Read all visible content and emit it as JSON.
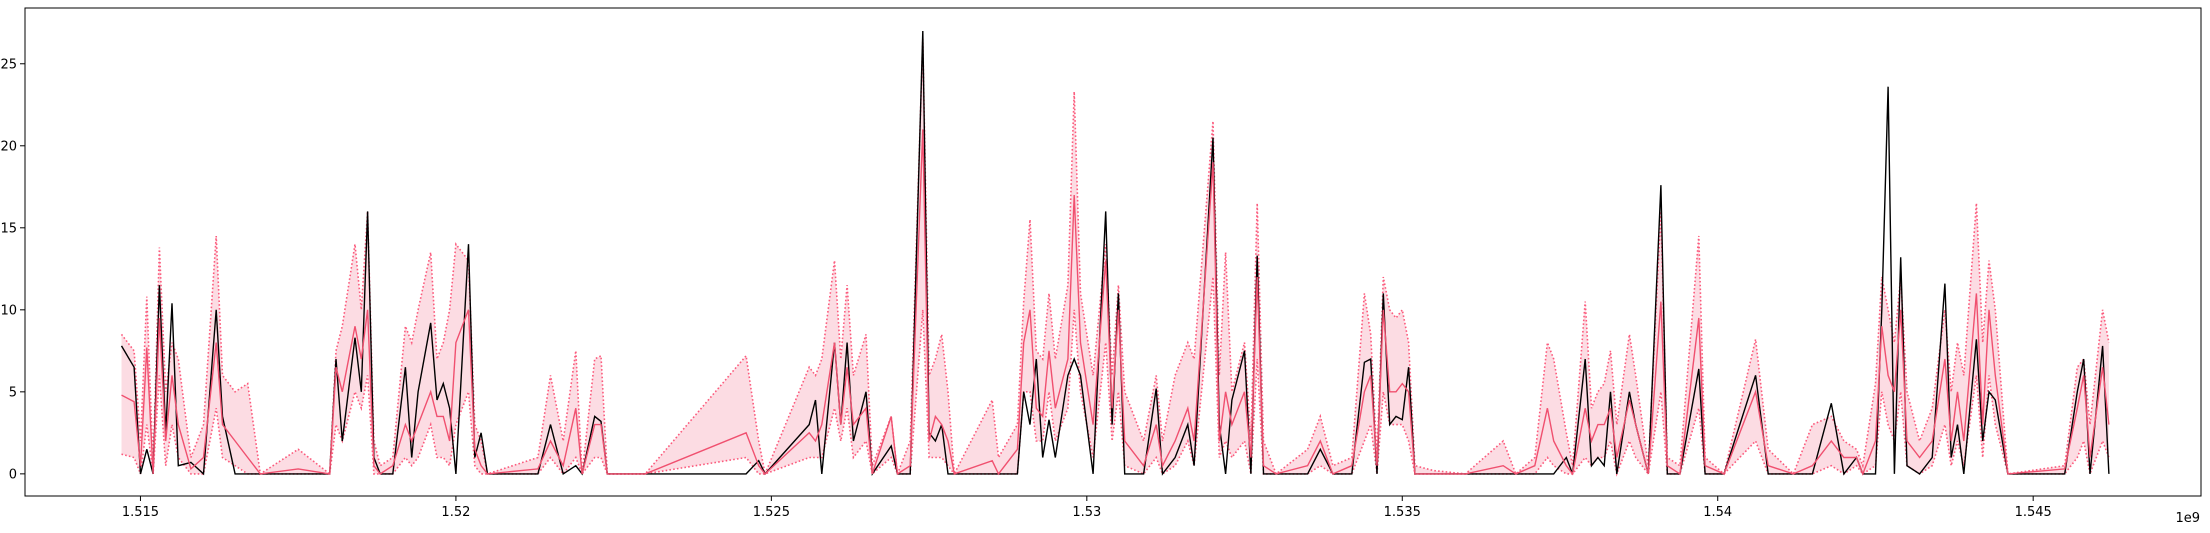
{
  "chart_data": {
    "type": "line",
    "x_offset_label": "1e9",
    "x": [
      1.5147,
      1.5149,
      1.515,
      1.5151,
      1.5152,
      1.5153,
      1.5154,
      1.5155,
      1.5156,
      1.5158,
      1.516,
      1.5162,
      1.5163,
      1.5165,
      1.5167,
      1.5169,
      1.5175,
      1.518,
      1.5181,
      1.5182,
      1.5184,
      1.5185,
      1.5186,
      1.5187,
      1.5188,
      1.519,
      1.5192,
      1.5193,
      1.5194,
      1.5196,
      1.5197,
      1.5198,
      1.5199,
      1.52,
      1.5202,
      1.5203,
      1.5204,
      1.5205,
      1.5213,
      1.5215,
      1.5217,
      1.5219,
      1.522,
      1.5222,
      1.5223,
      1.5224,
      1.523,
      1.5246,
      1.5248,
      1.5249,
      1.5256,
      1.5257,
      1.5258,
      1.526,
      1.5261,
      1.5262,
      1.5263,
      1.5265,
      1.5266,
      1.5269,
      1.527,
      1.5272,
      1.5274,
      1.5275,
      1.5276,
      1.5277,
      1.5278,
      1.5279,
      1.5285,
      1.5286,
      1.5289,
      1.529,
      1.5291,
      1.5292,
      1.5293,
      1.5294,
      1.5295,
      1.5297,
      1.5298,
      1.5299,
      1.5301,
      1.5303,
      1.5304,
      1.5305,
      1.5306,
      1.5309,
      1.5311,
      1.5312,
      1.5314,
      1.5316,
      1.5317,
      1.532,
      1.5321,
      1.5322,
      1.5323,
      1.5325,
      1.5326,
      1.5327,
      1.5328,
      1.533,
      1.5335,
      1.5337,
      1.5339,
      1.5342,
      1.5344,
      1.5345,
      1.5346,
      1.5347,
      1.5348,
      1.5349,
      1.535,
      1.5351,
      1.5352,
      1.5355,
      1.536,
      1.5366,
      1.5368,
      1.5371,
      1.5373,
      1.5374,
      1.5376,
      1.5377,
      1.5379,
      1.538,
      1.5381,
      1.5382,
      1.5383,
      1.5384,
      1.5386,
      1.5387,
      1.5389,
      1.5391,
      1.5392,
      1.5394,
      1.5397,
      1.5398,
      1.5401,
      1.5406,
      1.5408,
      1.5412,
      1.5415,
      1.5418,
      1.542,
      1.5422,
      1.5423,
      1.5425,
      1.5426,
      1.5427,
      1.5428,
      1.5429,
      1.543,
      1.5432,
      1.5434,
      1.5436,
      1.5437,
      1.5438,
      1.5439,
      1.5441,
      1.5442,
      1.5443,
      1.5444,
      1.5446,
      1.5455,
      1.5457,
      1.5458,
      1.5459,
      1.5461,
      1.5462
    ],
    "series": [
      {
        "color": "#fb5a7c",
        "linestyle": "dotted",
        "values": [
          1.2,
          1,
          0,
          3,
          0,
          6,
          0.5,
          3,
          1,
          0,
          0,
          4,
          1,
          0.5,
          0,
          0,
          0,
          0,
          3,
          2,
          5,
          4,
          6,
          0,
          0,
          0,
          1,
          0.5,
          1,
          3,
          1,
          1,
          0.5,
          3,
          5,
          0.5,
          0,
          0,
          0,
          1,
          0,
          1,
          0,
          1,
          1,
          0,
          0,
          1,
          0,
          0,
          1,
          1,
          1,
          4,
          2,
          4,
          1,
          2,
          0,
          1,
          0,
          0,
          10,
          1,
          1,
          1,
          0.5,
          0,
          0,
          0,
          0,
          5,
          5,
          2,
          2,
          5,
          2,
          4,
          10,
          5,
          1,
          8,
          2,
          5,
          0.5,
          0,
          1,
          0,
          0.5,
          2,
          0.5,
          12,
          1,
          2,
          1,
          2,
          0,
          7,
          0,
          0,
          0,
          0.5,
          0,
          0,
          2,
          3,
          0,
          5,
          3,
          3,
          3,
          2,
          0,
          0,
          0,
          0,
          0,
          0,
          1,
          0.5,
          0,
          0,
          1,
          0.5,
          1,
          1,
          2,
          0,
          2,
          1,
          0,
          5,
          0,
          0,
          4,
          0,
          0,
          2,
          0,
          0,
          0,
          0.5,
          0,
          0.5,
          0,
          0.5,
          5,
          3,
          2,
          5,
          0.5,
          0,
          0.5,
          3,
          0.5,
          2,
          0.5,
          6,
          1,
          6,
          3,
          0,
          0,
          1,
          2,
          0,
          2,
          1
        ]
      },
      {
        "color": "#fb5a7c",
        "linestyle": "dotted",
        "values": [
          8.5,
          7.5,
          2,
          10.8,
          0.5,
          13.8,
          5,
          8,
          7,
          1,
          3,
          14.5,
          6,
          5,
          5.5,
          0,
          1.5,
          0,
          7.5,
          9,
          14,
          10,
          16,
          2,
          0.5,
          1,
          9,
          8,
          10,
          13.5,
          7,
          8,
          10,
          14,
          13,
          3,
          2,
          0,
          1,
          6,
          2,
          7.5,
          0,
          7,
          7.2,
          0,
          0,
          7.2,
          2,
          0,
          6.5,
          6,
          7,
          13,
          7,
          11.5,
          6,
          8.5,
          0.5,
          3.5,
          0,
          2,
          26.5,
          6,
          7,
          8.5,
          5,
          0,
          4.5,
          1,
          3,
          10.5,
          15.5,
          7.5,
          7,
          11,
          7,
          11.5,
          23.3,
          11,
          6,
          14,
          6,
          11.5,
          5,
          2,
          6,
          2,
          6,
          8,
          7,
          21.5,
          6,
          13.5,
          5,
          8,
          2,
          16.5,
          2,
          0,
          1.5,
          3.5,
          0.5,
          1,
          11,
          8.5,
          1,
          12,
          10,
          9.5,
          10,
          8,
          0.5,
          0.2,
          0,
          2,
          0,
          1,
          8,
          7,
          2.5,
          0.5,
          10.5,
          4,
          5,
          5.5,
          7.5,
          3,
          8.5,
          6,
          0.5,
          16,
          1,
          0.5,
          14.5,
          1,
          0,
          8.2,
          1.5,
          0,
          3,
          3.5,
          2,
          1.5,
          0.5,
          5.5,
          12,
          10,
          8,
          12,
          5,
          2,
          4,
          10,
          5,
          8,
          6,
          16.5,
          8,
          13,
          10,
          0,
          0.5,
          6.5,
          7,
          3,
          10,
          8
        ]
      },
      {
        "color": "#000000",
        "linestyle": "solid",
        "values": [
          7.8,
          6.5,
          0,
          1.5,
          0,
          11.5,
          2.5,
          10.4,
          0.5,
          0.7,
          0,
          10,
          3.5,
          0,
          0,
          0,
          0,
          0,
          7,
          2,
          8.3,
          5,
          16,
          1,
          0,
          0,
          6.5,
          1,
          5,
          9.2,
          4.5,
          5.5,
          4,
          0,
          14,
          1,
          2.5,
          0,
          0,
          3,
          0,
          0.5,
          0,
          3.5,
          3.2,
          0,
          0,
          0,
          0.8,
          0,
          3,
          4.5,
          0,
          8,
          3,
          8,
          2,
          5,
          0,
          1.7,
          0,
          0,
          27,
          2.5,
          2,
          3,
          0,
          0,
          0,
          0,
          0,
          5,
          3,
          7,
          1,
          3.3,
          1,
          6,
          7,
          6,
          0,
          16,
          3,
          11,
          0,
          0,
          5.2,
          0,
          1,
          3,
          0.5,
          20.5,
          3,
          0,
          4.5,
          7.5,
          0,
          13.3,
          0,
          0,
          0,
          1.5,
          0,
          0,
          6.8,
          7,
          0,
          11,
          3,
          3.5,
          3.3,
          6.5,
          0,
          0,
          0,
          0,
          0,
          0,
          0,
          0,
          1,
          0,
          7,
          0.5,
          1,
          0.5,
          5,
          0,
          5,
          3,
          0,
          17.6,
          0,
          0,
          6.4,
          0,
          0,
          6,
          0,
          0,
          0,
          4.3,
          0,
          1,
          0,
          0,
          10,
          23.6,
          0,
          13.2,
          0.5,
          0,
          1,
          11.6,
          1,
          3,
          0,
          8.2,
          2,
          5,
          4.5,
          0,
          0,
          5,
          7,
          0,
          7.8,
          0
        ]
      },
      {
        "color": "#f0506f",
        "linestyle": "solid",
        "values": [
          4.8,
          4.4,
          0.5,
          7.7,
          0,
          9.5,
          2,
          6,
          3,
          0.3,
          1,
          8,
          3,
          2,
          1,
          0,
          0.3,
          0,
          6.5,
          5,
          9,
          7,
          10,
          0.5,
          0,
          0.5,
          3,
          2,
          3,
          5,
          3.5,
          3.5,
          2,
          8,
          10,
          1.5,
          0.5,
          0,
          0.3,
          2,
          0.5,
          4,
          0,
          3,
          3,
          0,
          0,
          2.5,
          0.5,
          0,
          2.5,
          2,
          3,
          8,
          3,
          6.5,
          3,
          4,
          0,
          3.5,
          0,
          0.5,
          21,
          2,
          3.5,
          3,
          2,
          0,
          0.8,
          0,
          1.5,
          8,
          10,
          4,
          3.5,
          7.5,
          4,
          7,
          17,
          8,
          3,
          13,
          4,
          10,
          2,
          0.5,
          3,
          0.5,
          2,
          4,
          2,
          19,
          2,
          5,
          3,
          5,
          1,
          12,
          0.5,
          0,
          0.5,
          2,
          0,
          0.5,
          5,
          6,
          0.5,
          10,
          5,
          5,
          5.5,
          5,
          0,
          0,
          0,
          0.5,
          0,
          0.5,
          4,
          2,
          0.5,
          0,
          4,
          2,
          3,
          3,
          4,
          1,
          4.5,
          3,
          0,
          10.5,
          0.5,
          0,
          9.5,
          0.5,
          0,
          5,
          0.5,
          0,
          0.5,
          2,
          1,
          1,
          0,
          2,
          9,
          6,
          5,
          10,
          2,
          1,
          2,
          7,
          2,
          5,
          2,
          11,
          3,
          10,
          6,
          0,
          0.3,
          4,
          6,
          1,
          6.5,
          3
        ]
      }
    ],
    "fill_between": [
      0,
      1
    ],
    "fill_color": "#fcdce3",
    "xlim": [
      1.51317,
      1.54766
    ],
    "xticks": [
      1.515,
      1.52,
      1.525,
      1.53,
      1.535,
      1.54,
      1.545
    ],
    "ylim": [
      -1.35,
      28.4
    ],
    "yticks": [
      0,
      5,
      10,
      15,
      20,
      25
    ],
    "grid": false
  }
}
